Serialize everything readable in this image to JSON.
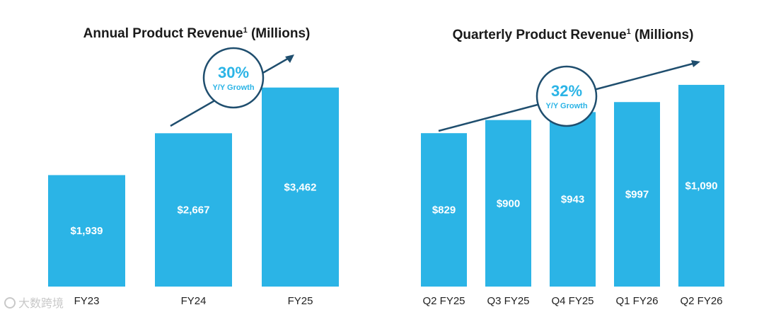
{
  "chart_data": [
    {
      "type": "bar",
      "title": "Annual Product Revenue",
      "title_superscript": "1",
      "title_suffix": "(Millions)",
      "categories": [
        "FY23",
        "FY24",
        "FY25"
      ],
      "values": [
        1939,
        2667,
        3462
      ],
      "value_labels": [
        "$1,939",
        "$2,667",
        "$3,462"
      ],
      "ylim": [
        0,
        4000
      ],
      "color": "#2bb4e6",
      "growth": {
        "value": "30%",
        "label": "Y/Y Growth"
      }
    },
    {
      "type": "bar",
      "title": "Quarterly Product Revenue",
      "title_superscript": "1",
      "title_suffix": "(Millions)",
      "categories": [
        "Q2 FY25",
        "Q3 FY25",
        "Q4 FY25",
        "Q1 FY26",
        "Q2 FY26"
      ],
      "values": [
        829,
        900,
        943,
        997,
        1090
      ],
      "value_labels": [
        "$829",
        "$900",
        "$943",
        "$997",
        "$1,090"
      ],
      "ylim": [
        0,
        1300
      ],
      "color": "#2bb4e6",
      "growth": {
        "value": "32%",
        "label": "Y/Y Growth"
      }
    }
  ],
  "colors": {
    "bar": "#2bb4e6",
    "accent_dark": "#1f4e6e"
  },
  "watermark": {
    "text": "大数跨境"
  }
}
